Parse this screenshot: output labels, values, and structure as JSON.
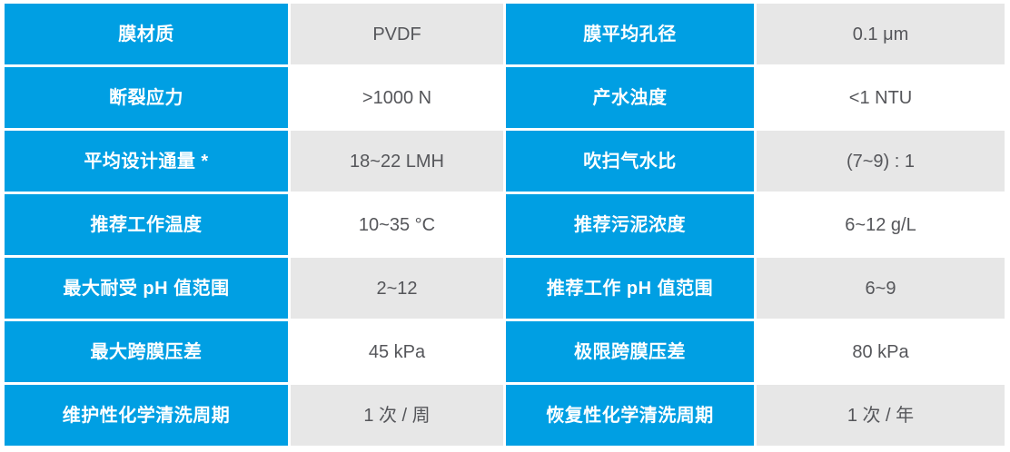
{
  "colors": {
    "header_bg": "#009FE3",
    "header_text": "#FFFFFF",
    "value_text": "#55565A",
    "row_shade": "#E7E7E7",
    "row_plain": "#FFFFFF"
  },
  "table": {
    "rows": [
      {
        "left_label": "膜材质",
        "left_value": "PVDF",
        "right_label": "膜平均孔径",
        "right_value": "0.1 μm"
      },
      {
        "left_label": "断裂应力",
        "left_value": ">1000 N",
        "right_label": "产水浊度",
        "right_value": "<1 NTU"
      },
      {
        "left_label": "平均设计通量 *",
        "left_value": "18~22 LMH",
        "right_label": "吹扫气水比",
        "right_value": "(7~9) : 1"
      },
      {
        "left_label": "推荐工作温度",
        "left_value": "10~35 °C",
        "right_label": "推荐污泥浓度",
        "right_value": "6~12 g/L"
      },
      {
        "left_label": "最大耐受 pH 值范围",
        "left_value": "2~12",
        "right_label": "推荐工作 pH 值范围",
        "right_value": "6~9"
      },
      {
        "left_label": "最大跨膜压差",
        "left_value": "45 kPa",
        "right_label": "极限跨膜压差",
        "right_value": "80 kPa"
      },
      {
        "left_label": "维护性化学清洗周期",
        "left_value": "1 次 / 周",
        "right_label": "恢复性化学清洗周期",
        "right_value": "1 次 / 年"
      }
    ]
  }
}
